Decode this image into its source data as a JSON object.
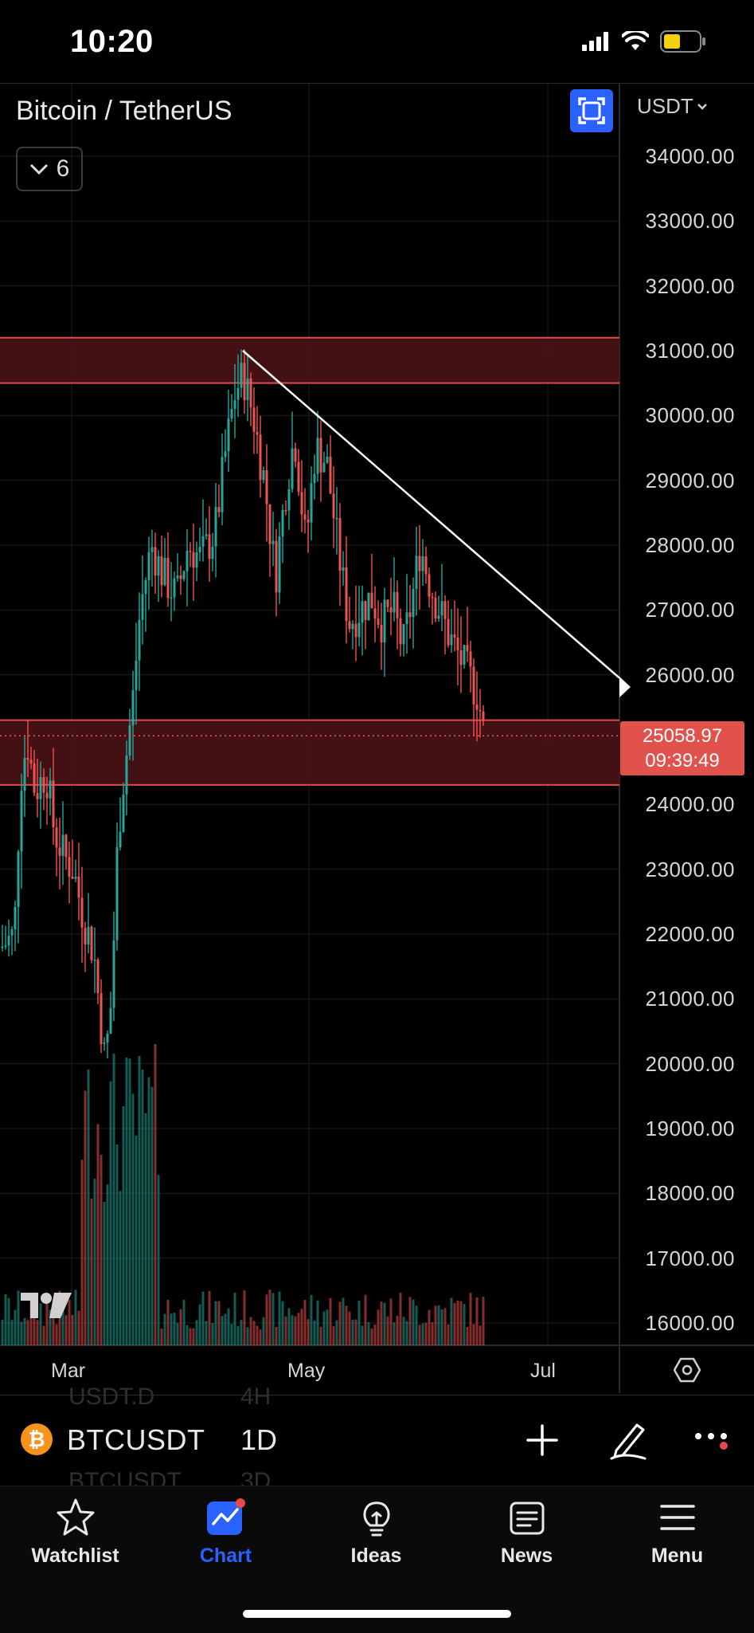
{
  "status_bar": {
    "time": "10:20"
  },
  "chart": {
    "symbol_title": "Bitcoin / TetherUS",
    "indicators_count": "6",
    "currency": "USDT",
    "last_price": "25058.97",
    "countdown": "09:39:49",
    "price_axis": [
      "34000.00",
      "33000.00",
      "32000.00",
      "31000.00",
      "30000.00",
      "29000.00",
      "28000.00",
      "27000.00",
      "26000.00",
      "25000.00",
      "24000.00",
      "23000.00",
      "22000.00",
      "21000.00",
      "20000.00",
      "19000.00",
      "18000.00",
      "17000.00",
      "16000.00"
    ],
    "time_axis": [
      "Mar",
      "May",
      "Jul"
    ],
    "colors": {
      "up": "#26a69a",
      "down": "#ef5350",
      "zone": "#4a1216",
      "zone_border": "#e5484d",
      "trendline": "#ffffff",
      "accent": "#2962ff"
    },
    "zones": [
      {
        "from": 30500,
        "to": 31200
      },
      {
        "from": 24300,
        "to": 25300
      }
    ],
    "trendline": {
      "from": {
        "date": "Apr 14",
        "price": 31000
      },
      "to": {
        "date": "Jun 15",
        "price": 25950
      }
    }
  },
  "chart_data": {
    "type": "candlestick",
    "title": "Bitcoin / TetherUS",
    "symbol": "BTCUSDT",
    "interval": "1D",
    "ylim": [
      16000,
      34000
    ],
    "x_ticks": [
      "Mar",
      "May",
      "Jul"
    ],
    "last_price": 25058.97,
    "y_scale_note": "USDT",
    "ohlc_approx": [
      {
        "period": "early Mar",
        "low": 21800,
        "high": 23800
      },
      {
        "period": "Mar 10",
        "low": 19600,
        "high": 22000
      },
      {
        "period": "late Mar",
        "low": 24300,
        "high": 28900
      },
      {
        "period": "Apr 14",
        "low": 29800,
        "high": 31000
      },
      {
        "period": "late Apr",
        "low": 27000,
        "high": 30000
      },
      {
        "period": "mid May",
        "low": 25900,
        "high": 27600
      },
      {
        "period": "late May",
        "low": 26000,
        "high": 28400
      },
      {
        "period": "Jun 10",
        "low": 25000,
        "high": 26600
      }
    ]
  },
  "symbol_bar": {
    "symbol": "BTCUSDT",
    "interval": "1D",
    "ghost_above": "USDT.D",
    "ghost_above_interval": "4H",
    "ghost_below": "BTCUSDT",
    "ghost_below_interval": "3D"
  },
  "tabs": [
    {
      "label": "Watchlist",
      "icon": "star-icon"
    },
    {
      "label": "Chart",
      "icon": "chart-icon",
      "active": true
    },
    {
      "label": "Ideas",
      "icon": "lightbulb-icon"
    },
    {
      "label": "News",
      "icon": "news-icon"
    },
    {
      "label": "Menu",
      "icon": "menu-icon"
    }
  ]
}
